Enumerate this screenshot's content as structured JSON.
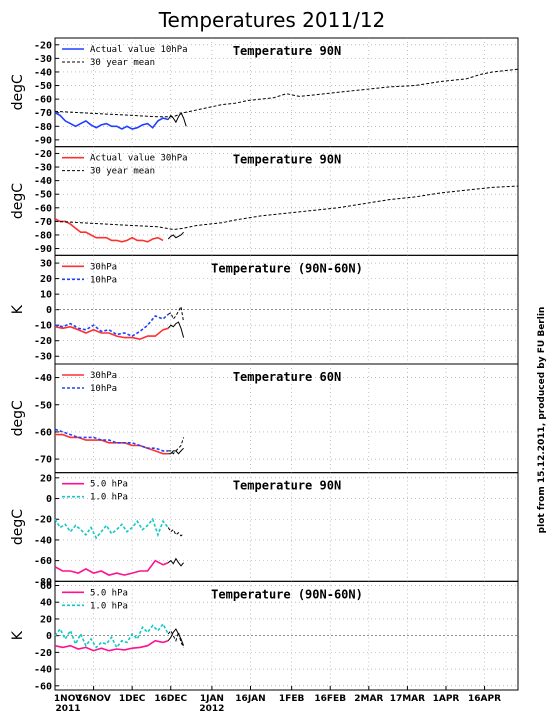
{
  "figure": {
    "title": "Temperatures 2011/12",
    "credit": "plot from 15.12.2011, produced by FU Berlin",
    "x_ticks": [
      {
        "label": "1NOV",
        "day": 0
      },
      {
        "label": "16NOV",
        "day": 15
      },
      {
        "label": "1DEC",
        "day": 30
      },
      {
        "label": "16DEC",
        "day": 45
      },
      {
        "label": "1JAN",
        "day": 61
      },
      {
        "label": "16JAN",
        "day": 76
      },
      {
        "label": "1FEB",
        "day": 92
      },
      {
        "label": "16FEB",
        "day": 107
      },
      {
        "label": "2MAR",
        "day": 122
      },
      {
        "label": "17MAR",
        "day": 137
      },
      {
        "label": "1APR",
        "day": 152
      },
      {
        "label": "16APR",
        "day": 167
      }
    ],
    "x_years": [
      {
        "label": "2011",
        "day": 0
      },
      {
        "label": "2012",
        "day": 61
      }
    ]
  },
  "colors": {
    "blue": "#2040ff",
    "red": "#ff3030",
    "magenta": "#ff1090",
    "cyan": "#10c8c8",
    "black": "#000000"
  },
  "chart_data": [
    {
      "type": "line",
      "title": "Temperature 90N",
      "ylabel": "degC",
      "ylim": [
        -95,
        -15
      ],
      "yticks": [
        -90,
        -80,
        -70,
        -60,
        -50,
        -40,
        -30,
        -20
      ],
      "zero_line": false,
      "series": [
        {
          "name": "Actual value 10hPa",
          "color": "blue",
          "style": "solid",
          "x": [
            0,
            2,
            4,
            6,
            8,
            10,
            12,
            14,
            16,
            18,
            20,
            22,
            24,
            26,
            28,
            30,
            32,
            34,
            36,
            38,
            40,
            42,
            44
          ],
          "y": [
            -70,
            -72,
            -76,
            -78,
            -80,
            -78,
            -76,
            -79,
            -81,
            -79,
            -78,
            -80,
            -80,
            -82,
            -80,
            -82,
            -81,
            -79,
            -78,
            -81,
            -76,
            -74,
            -75
          ]
        },
        {
          "name": "30 year mean",
          "color": "black",
          "style": "dashed",
          "x": [
            0,
            10,
            20,
            30,
            40,
            46,
            50,
            55,
            60,
            65,
            70,
            75,
            80,
            85,
            90,
            95,
            100,
            110,
            120,
            130,
            140,
            150,
            160,
            165,
            170,
            175,
            180
          ],
          "y": [
            -69,
            -70,
            -71,
            -72,
            -73,
            -73,
            -70,
            -68,
            -66,
            -64,
            -63,
            -61,
            -60,
            -59,
            -56,
            -58,
            -57,
            -55,
            -53,
            -51,
            -50,
            -47,
            -45,
            -42,
            -40,
            -39,
            -38
          ]
        },
        {
          "name": "",
          "color": "black",
          "style": "solid",
          "x": [
            44,
            45,
            46,
            47,
            48,
            49,
            50,
            51
          ],
          "y": [
            -75,
            -72,
            -74,
            -77,
            -73,
            -70,
            -74,
            -80
          ]
        }
      ]
    },
    {
      "type": "line",
      "title": "Temperature 90N",
      "ylabel": "degC",
      "ylim": [
        -95,
        -15
      ],
      "yticks": [
        -90,
        -80,
        -70,
        -60,
        -50,
        -40,
        -30,
        -20
      ],
      "zero_line": false,
      "series": [
        {
          "name": "Actual value 30hPa",
          "color": "red",
          "style": "solid",
          "x": [
            0,
            2,
            4,
            6,
            8,
            10,
            12,
            14,
            16,
            18,
            20,
            22,
            24,
            26,
            28,
            30,
            32,
            34,
            36,
            38,
            40,
            42
          ],
          "y": [
            -68,
            -70,
            -70,
            -72,
            -75,
            -78,
            -78,
            -80,
            -82,
            -82,
            -82,
            -84,
            -84,
            -85,
            -84,
            -82,
            -84,
            -84,
            -85,
            -83,
            -82,
            -84
          ]
        },
        {
          "name": "30 year mean",
          "color": "black",
          "style": "dashed",
          "x": [
            0,
            10,
            20,
            30,
            40,
            46,
            50,
            55,
            60,
            65,
            70,
            80,
            90,
            100,
            110,
            120,
            130,
            140,
            150,
            160,
            170,
            180
          ],
          "y": [
            -70,
            -71,
            -72,
            -73,
            -74,
            -76,
            -75,
            -73,
            -72,
            -71,
            -69,
            -66,
            -64,
            -62,
            -60,
            -57,
            -54,
            -52,
            -49,
            -47,
            -45,
            -44
          ]
        },
        {
          "name": "",
          "color": "black",
          "style": "solid",
          "x": [
            44,
            45,
            46,
            47,
            48,
            49,
            50
          ],
          "y": [
            -83,
            -81,
            -80,
            -82,
            -81,
            -80,
            -78
          ]
        }
      ]
    },
    {
      "type": "line",
      "title": "Temperature (90N-60N)",
      "ylabel": "K",
      "ylim": [
        -35,
        35
      ],
      "yticks": [
        -30,
        -20,
        -10,
        0,
        10,
        20,
        30
      ],
      "zero_line": true,
      "series": [
        {
          "name": "30hPa",
          "color": "red",
          "style": "solid",
          "x": [
            0,
            3,
            6,
            9,
            12,
            15,
            18,
            21,
            24,
            27,
            30,
            33,
            36,
            39,
            42,
            44
          ],
          "y": [
            -11,
            -12,
            -11,
            -13,
            -15,
            -13,
            -15,
            -15,
            -17,
            -18,
            -18,
            -19,
            -17,
            -17,
            -13,
            -12
          ]
        },
        {
          "name": "10hPa",
          "color": "blue",
          "style": "dashed",
          "x": [
            0,
            3,
            6,
            9,
            12,
            15,
            18,
            21,
            24,
            27,
            30,
            33,
            36,
            39,
            42,
            44
          ],
          "y": [
            -10,
            -11,
            -9,
            -12,
            -13,
            -10,
            -14,
            -13,
            -16,
            -15,
            -17,
            -14,
            -10,
            -4,
            -6,
            -3
          ]
        },
        {
          "name": "",
          "color": "black",
          "style": "solid",
          "x": [
            44,
            45,
            46,
            47,
            48,
            49,
            50
          ],
          "y": [
            -12,
            -10,
            -11,
            -9,
            -8,
            -12,
            -18
          ]
        },
        {
          "name": "",
          "color": "black",
          "style": "dashed",
          "x": [
            44,
            45,
            46,
            47,
            48,
            49,
            50
          ],
          "y": [
            -3,
            -2,
            -6,
            -4,
            -1,
            2,
            -8
          ]
        }
      ]
    },
    {
      "type": "line",
      "title": "Temperature 60N",
      "ylabel": "degC",
      "ylim": [
        -75,
        -35
      ],
      "yticks": [
        -70,
        -60,
        -50,
        -40
      ],
      "zero_line": false,
      "series": [
        {
          "name": "30hPa",
          "color": "red",
          "style": "solid",
          "x": [
            0,
            3,
            6,
            9,
            12,
            15,
            18,
            21,
            24,
            27,
            30,
            33,
            36,
            39,
            42,
            44
          ],
          "y": [
            -61,
            -61,
            -62,
            -62,
            -63,
            -63,
            -63,
            -64,
            -64,
            -64,
            -65,
            -65,
            -66,
            -67,
            -68,
            -68
          ]
        },
        {
          "name": "10hPa",
          "color": "blue",
          "style": "dashed",
          "x": [
            0,
            3,
            6,
            9,
            12,
            15,
            18,
            21,
            24,
            27,
            30,
            33,
            36,
            39,
            42,
            44
          ],
          "y": [
            -59,
            -60,
            -61,
            -62,
            -62,
            -62,
            -63,
            -63,
            -64,
            -64,
            -64,
            -65,
            -66,
            -66,
            -67,
            -67
          ]
        },
        {
          "name": "",
          "color": "black",
          "style": "solid",
          "x": [
            44,
            45,
            46,
            47,
            48,
            49,
            50
          ],
          "y": [
            -68,
            -68,
            -67,
            -67,
            -68,
            -67,
            -66
          ]
        },
        {
          "name": "",
          "color": "black",
          "style": "dashed",
          "x": [
            44,
            45,
            46,
            47,
            48,
            49,
            50
          ],
          "y": [
            -67,
            -67,
            -68,
            -67,
            -66,
            -65,
            -62
          ]
        }
      ]
    },
    {
      "type": "line",
      "title": "Temperature 90N",
      "ylabel": "degC",
      "ylim": [
        -80,
        25
      ],
      "yticks": [
        -80,
        -60,
        -40,
        -20,
        0,
        20
      ],
      "zero_line": false,
      "series": [
        {
          "name": "5.0 hPa",
          "color": "magenta",
          "style": "solid",
          "x": [
            0,
            3,
            6,
            9,
            12,
            15,
            18,
            21,
            24,
            27,
            30,
            33,
            36,
            39,
            42,
            44
          ],
          "y": [
            -66,
            -70,
            -70,
            -72,
            -68,
            -72,
            -70,
            -74,
            -72,
            -74,
            -72,
            -70,
            -70,
            -60,
            -64,
            -62
          ]
        },
        {
          "name": "1.0 hPa",
          "color": "cyan",
          "style": "dashed",
          "x": [
            0,
            2,
            4,
            6,
            8,
            10,
            12,
            14,
            16,
            18,
            20,
            22,
            24,
            26,
            28,
            30,
            32,
            34,
            36,
            38,
            40,
            42,
            44
          ],
          "y": [
            -20,
            -28,
            -25,
            -32,
            -26,
            -30,
            -35,
            -28,
            -38,
            -32,
            -26,
            -34,
            -30,
            -25,
            -32,
            -28,
            -22,
            -30,
            -26,
            -20,
            -35,
            -22,
            -28
          ]
        },
        {
          "name": "",
          "color": "black",
          "style": "solid",
          "x": [
            44,
            45,
            46,
            47,
            48,
            49,
            50
          ],
          "y": [
            -62,
            -60,
            -63,
            -58,
            -62,
            -65,
            -62
          ]
        },
        {
          "name": "",
          "color": "black",
          "style": "dashed",
          "x": [
            44,
            45,
            46,
            47,
            48,
            49,
            50
          ],
          "y": [
            -28,
            -32,
            -30,
            -35,
            -33,
            -36,
            -34
          ]
        }
      ]
    },
    {
      "type": "line",
      "title": "Temperature (90N-60N)",
      "ylabel": "K",
      "ylim": [
        -65,
        65
      ],
      "yticks": [
        -60,
        -40,
        -20,
        0,
        20,
        40,
        60
      ],
      "zero_line": true,
      "series": [
        {
          "name": "5.0 hPa",
          "color": "magenta",
          "style": "solid",
          "x": [
            0,
            3,
            6,
            9,
            12,
            15,
            18,
            21,
            24,
            27,
            30,
            33,
            36,
            39,
            42,
            44
          ],
          "y": [
            -12,
            -14,
            -12,
            -16,
            -14,
            -18,
            -15,
            -18,
            -16,
            -17,
            -15,
            -14,
            -12,
            -6,
            -8,
            -6
          ]
        },
        {
          "name": "1.0 hPa",
          "color": "cyan",
          "style": "dashed",
          "x": [
            0,
            2,
            4,
            6,
            8,
            10,
            12,
            14,
            16,
            18,
            20,
            22,
            24,
            26,
            28,
            30,
            32,
            34,
            36,
            38,
            40,
            42,
            44
          ],
          "y": [
            0,
            8,
            -4,
            6,
            -10,
            2,
            -12,
            -4,
            -14,
            -8,
            -10,
            -2,
            -14,
            -6,
            -8,
            2,
            -4,
            10,
            4,
            12,
            6,
            14,
            2
          ]
        },
        {
          "name": "",
          "color": "black",
          "style": "solid",
          "x": [
            44,
            45,
            46,
            47,
            48,
            49,
            50
          ],
          "y": [
            -6,
            -2,
            4,
            8,
            2,
            -4,
            -12
          ]
        },
        {
          "name": "",
          "color": "black",
          "style": "dashed",
          "x": [
            44,
            45,
            46,
            47,
            48,
            49,
            50
          ],
          "y": [
            2,
            6,
            0,
            -6,
            4,
            -8,
            -14
          ]
        }
      ]
    }
  ]
}
